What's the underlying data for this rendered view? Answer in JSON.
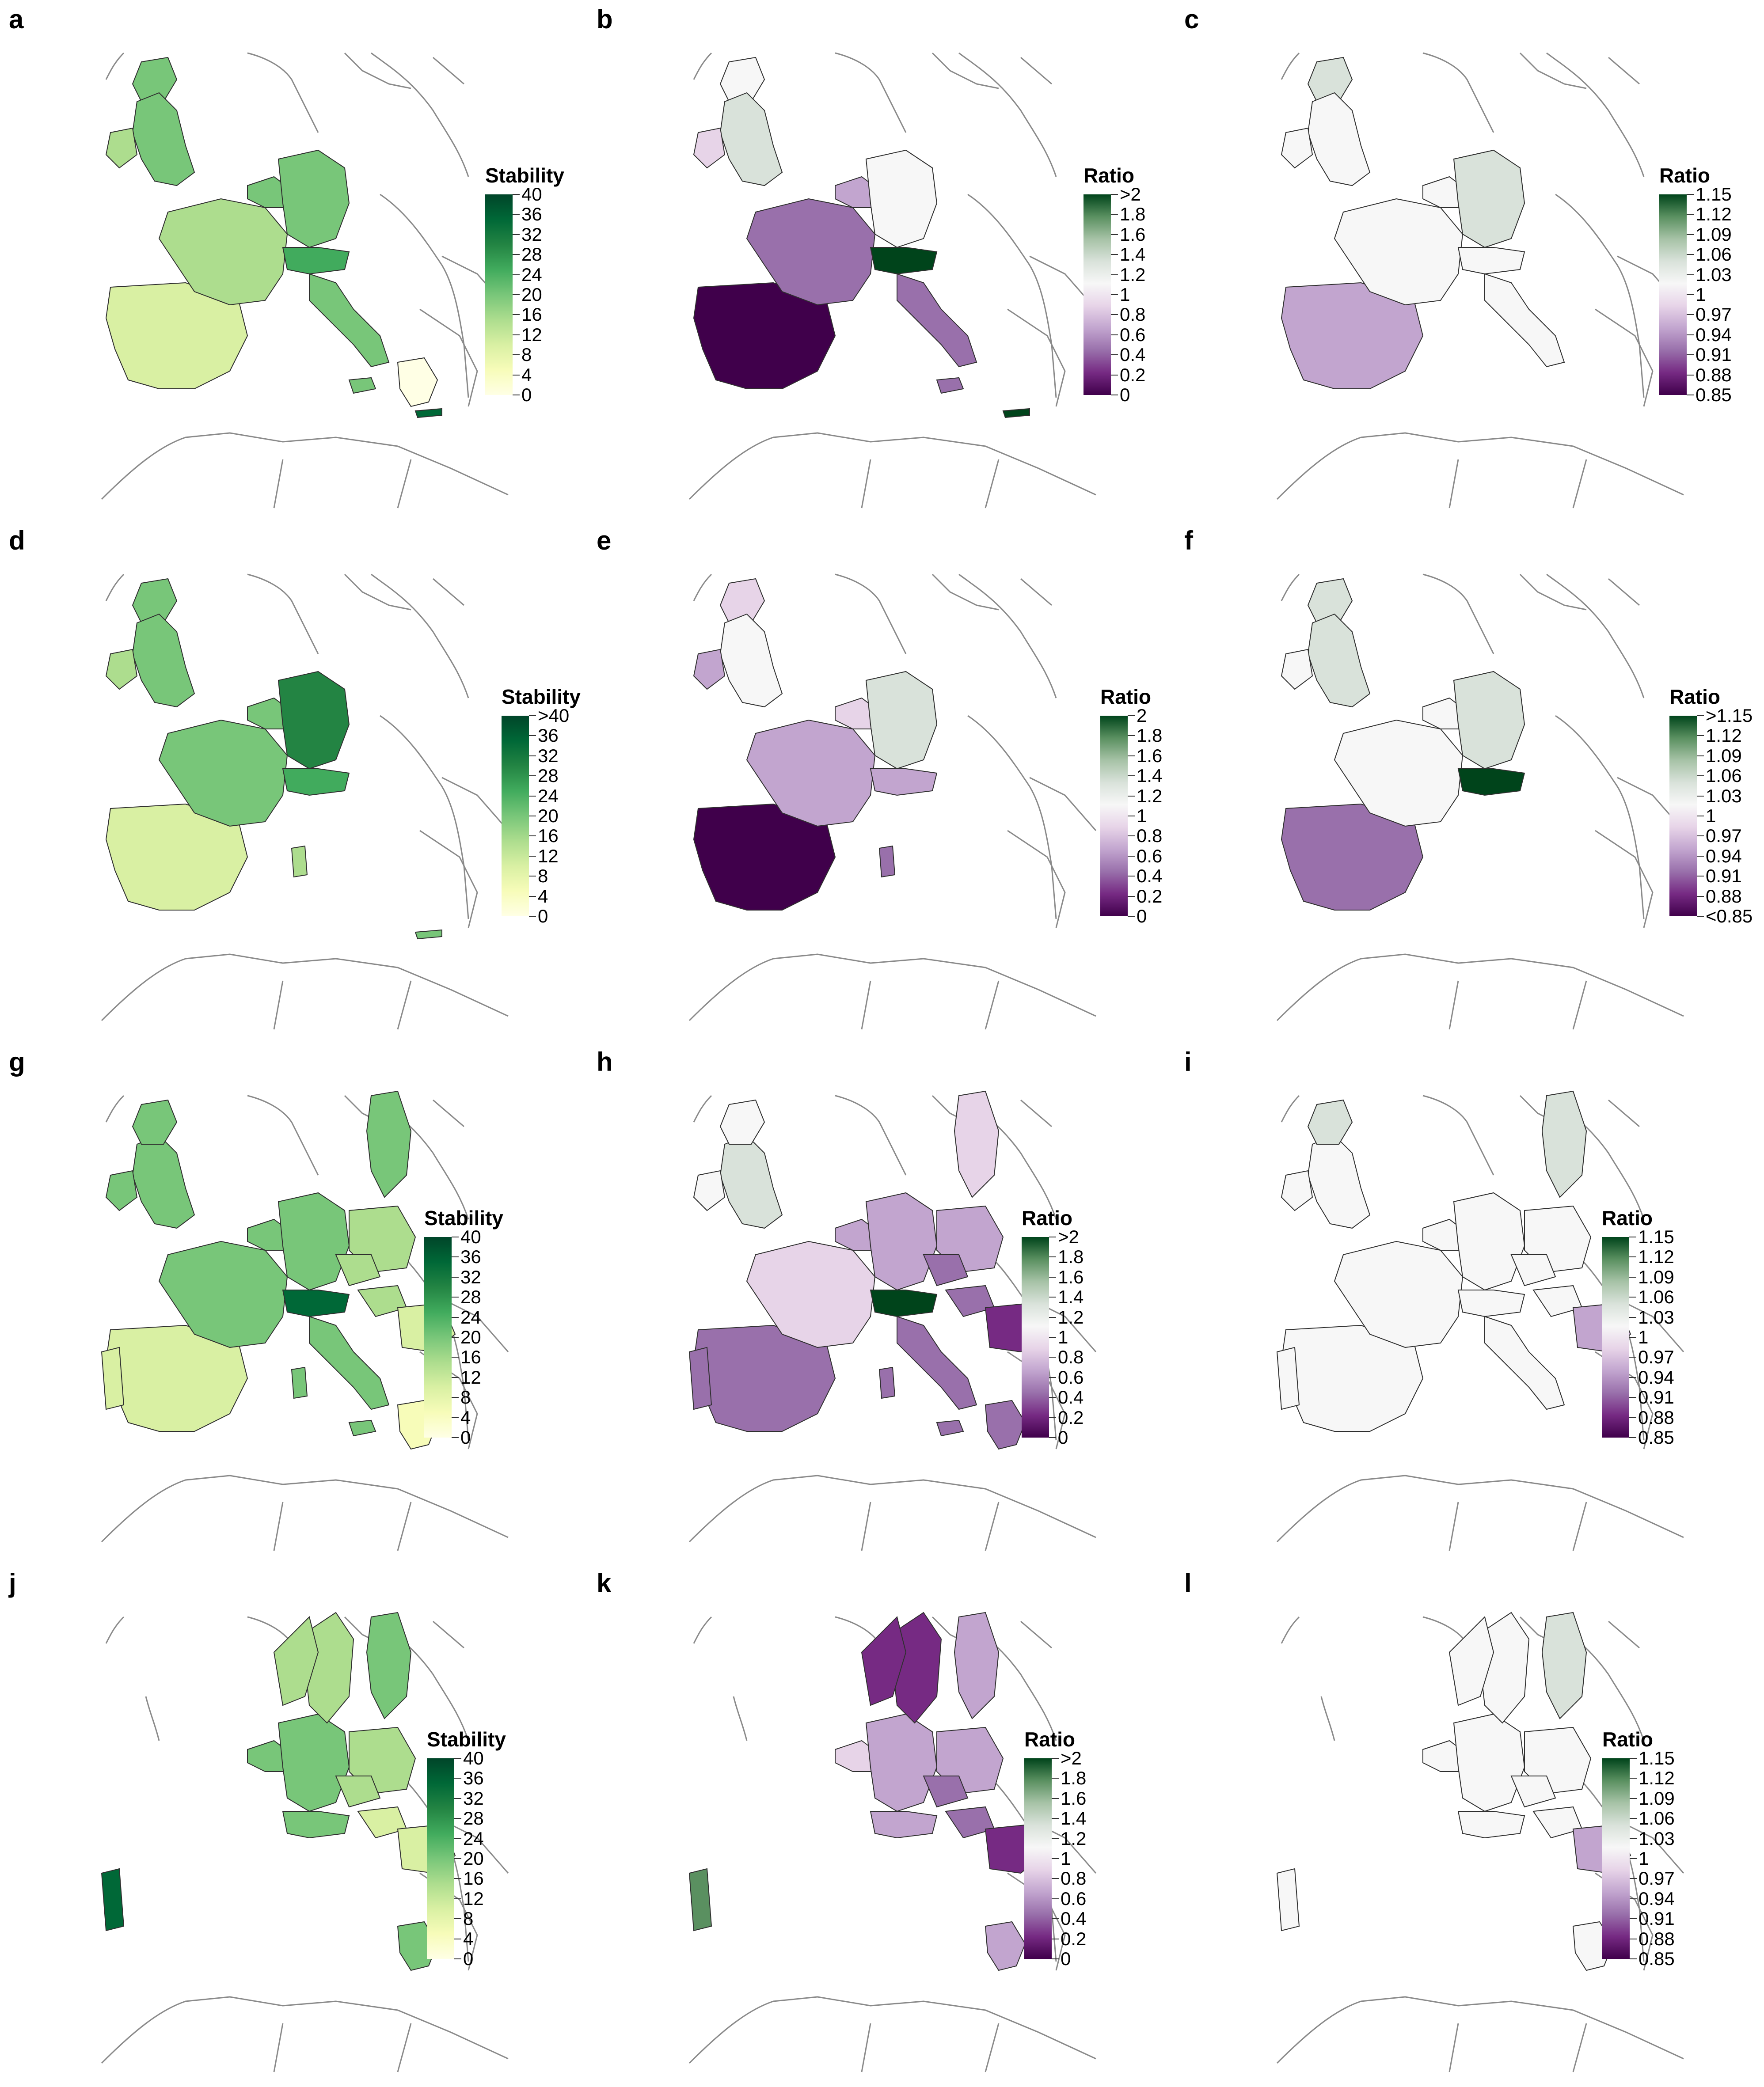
{
  "colors": {
    "outline": "#8a8a8a",
    "region_edge": "#2f2f2f",
    "stability_scale": [
      "#ffffe5",
      "#f7fcb9",
      "#d9f0a3",
      "#addd8e",
      "#78c679",
      "#41ab5d",
      "#238443",
      "#006837",
      "#004529"
    ],
    "ratio_scale": [
      "#40004b",
      "#762a83",
      "#9970ab",
      "#c2a5cf",
      "#e7d4e8",
      "#f7f7f7",
      "#d9e2da",
      "#a6c2a6",
      "#5a9060",
      "#00441b"
    ]
  },
  "panels": [
    {
      "label": "a",
      "legend": {
        "title": "Stability",
        "type": "stability",
        "ticks": [
          "40",
          "36",
          "32",
          "28",
          "24",
          "20",
          "16",
          "12",
          "8",
          "4",
          "0"
        ]
      }
    },
    {
      "label": "b",
      "legend": {
        "title": "Ratio",
        "type": "ratio",
        "ticks": [
          ">2",
          "1.8",
          "1.6",
          "1.4",
          "1.2",
          "1",
          "0.8",
          "0.6",
          "0.4",
          "0.2",
          "0"
        ]
      }
    },
    {
      "label": "c",
      "legend": {
        "title": "Ratio",
        "type": "ratio",
        "ticks": [
          "1.15",
          "1.12",
          "1.09",
          "1.06",
          "1.03",
          "1",
          "0.97",
          "0.94",
          "0.91",
          "0.88",
          "0.85"
        ]
      }
    },
    {
      "label": "d",
      "legend": {
        "title": "Stability",
        "type": "stability",
        "ticks": [
          ">40",
          "36",
          "32",
          "28",
          "24",
          "20",
          "16",
          "12",
          "8",
          "4",
          "0"
        ]
      }
    },
    {
      "label": "e",
      "legend": {
        "title": "Ratio",
        "type": "ratio",
        "ticks": [
          "2",
          "1.8",
          "1.6",
          "1.4",
          "1.2",
          "1",
          "0.8",
          "0.6",
          "0.4",
          "0.2",
          "0"
        ]
      }
    },
    {
      "label": "f",
      "legend": {
        "title": "Ratio",
        "type": "ratio",
        "ticks": [
          ">1.15",
          "1.12",
          "1.09",
          "1.06",
          "1.03",
          "1",
          "0.97",
          "0.94",
          "0.91",
          "0.88",
          "<0.85"
        ]
      }
    },
    {
      "label": "g",
      "legend": {
        "title": "Stability",
        "type": "stability",
        "ticks": [
          "40",
          "36",
          "32",
          "28",
          "24",
          "20",
          "16",
          "12",
          "8",
          "4",
          "0"
        ]
      }
    },
    {
      "label": "h",
      "legend": {
        "title": "Ratio",
        "type": "ratio",
        "ticks": [
          ">2",
          "1.8",
          "1.6",
          "1.4",
          "1.2",
          "1",
          "0.8",
          "0.6",
          "0.4",
          "0.2",
          "0"
        ]
      }
    },
    {
      "label": "i",
      "legend": {
        "title": "Ratio",
        "type": "ratio",
        "ticks": [
          "1.15",
          "1.12",
          "1.09",
          "1.06",
          "1.03",
          "1",
          "0.97",
          "0.94",
          "0.91",
          "0.88",
          "0.85"
        ]
      }
    },
    {
      "label": "j",
      "legend": {
        "title": "Stability",
        "type": "stability",
        "ticks": [
          "40",
          "36",
          "32",
          "28",
          "24",
          "20",
          "16",
          "12",
          "8",
          "4",
          "0"
        ]
      }
    },
    {
      "label": "k",
      "legend": {
        "title": "Ratio",
        "type": "ratio",
        "ticks": [
          ">2",
          "1.8",
          "1.6",
          "1.4",
          "1.2",
          "1",
          "0.8",
          "0.6",
          "0.4",
          "0.2",
          "0"
        ]
      }
    },
    {
      "label": "l",
      "legend": {
        "title": "Ratio",
        "type": "ratio",
        "ticks": [
          "1.15",
          "1.12",
          "1.09",
          "1.06",
          "1.03",
          "1",
          "0.97",
          "0.94",
          "0.91",
          "0.88",
          "0.85"
        ]
      }
    }
  ]
}
